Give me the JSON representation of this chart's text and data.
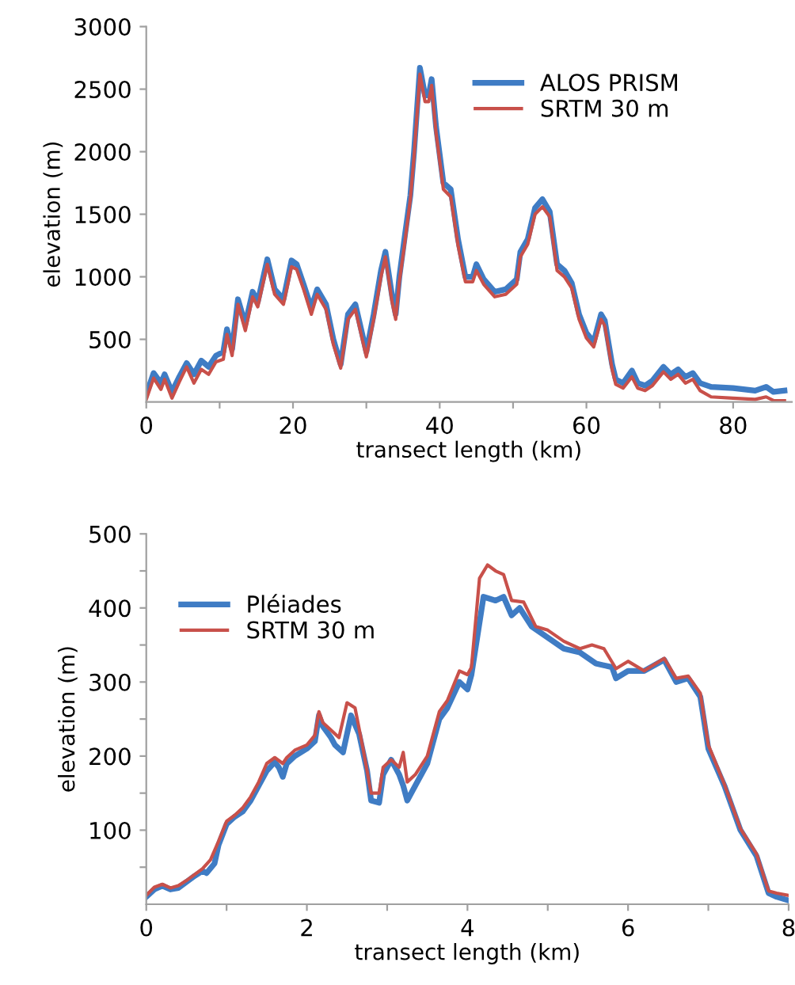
{
  "chart_data": [
    {
      "type": "line",
      "xlabel": "transect length (km)",
      "ylabel": "elevation (m)",
      "xlim": [
        0,
        88
      ],
      "ylim": [
        0,
        3000
      ],
      "xticks": [
        0,
        {
          "value": 10,
          "label": null
        },
        20,
        {
          "value": 30,
          "label": null
        },
        40,
        {
          "value": 50,
          "label": null
        },
        60,
        {
          "value": 70,
          "label": null
        },
        80
      ],
      "yticks": [
        500,
        1000,
        1500,
        2000,
        2500,
        3000
      ],
      "grid": false,
      "legend": "top right",
      "marker": "none",
      "line_style": "solid",
      "series": [
        {
          "name": "ALOS PRISM",
          "color": "#3f7cc4",
          "x": [
            0,
            1,
            2,
            2.5,
            3.5,
            4.5,
            5.5,
            6.5,
            7.5,
            8.5,
            9.5,
            10.5,
            11,
            11.7,
            12.5,
            13.5,
            14.5,
            15.2,
            16.5,
            17.5,
            18.7,
            19.8,
            20.5,
            21.5,
            22.5,
            23.3,
            24.5,
            25.5,
            26.5,
            27.5,
            28.5,
            30,
            31,
            32,
            32.6,
            33.5,
            34,
            34.5,
            35.3,
            36,
            36.5,
            37.3,
            38,
            38.5,
            38.9,
            39.5,
            40.5,
            41.5,
            42.5,
            43.5,
            44.5,
            45,
            46,
            47.5,
            49,
            50.5,
            51,
            52,
            53,
            54,
            55,
            56,
            57,
            58,
            59,
            60,
            61,
            62,
            62.5,
            63.5,
            64,
            65,
            66.2,
            67,
            68,
            69,
            70.5,
            71.5,
            72.5,
            73.5,
            74.5,
            75.5,
            77,
            80,
            83,
            84.5,
            85.5,
            87
          ],
          "values": [
            60,
            230,
            150,
            220,
            80,
            200,
            310,
            220,
            330,
            280,
            370,
            400,
            580,
            420,
            820,
            620,
            880,
            800,
            1140,
            900,
            820,
            1130,
            1100,
            930,
            750,
            900,
            780,
            500,
            300,
            700,
            780,
            400,
            700,
            1050,
            1200,
            850,
            700,
            1000,
            1350,
            1650,
            2000,
            2670,
            2450,
            2450,
            2580,
            2200,
            1750,
            1700,
            1300,
            1000,
            1000,
            1100,
            980,
            880,
            900,
            980,
            1200,
            1300,
            1550,
            1620,
            1520,
            1100,
            1050,
            950,
            700,
            550,
            480,
            700,
            650,
            300,
            180,
            150,
            250,
            150,
            130,
            170,
            280,
            220,
            260,
            200,
            230,
            150,
            120,
            110,
            90,
            120,
            80,
            90
          ]
        },
        {
          "name": "SRTM 30 m",
          "color": "#c8504a",
          "x": [
            0,
            1,
            2,
            2.5,
            3.5,
            4.5,
            5.5,
            6.5,
            7.5,
            8.5,
            9.5,
            10.5,
            11,
            11.7,
            12.5,
            13.5,
            14.5,
            15.2,
            16.5,
            17.5,
            18.7,
            19.8,
            20.5,
            21.5,
            22.5,
            23.3,
            24.5,
            25.5,
            26.5,
            27.5,
            28.5,
            30,
            31,
            32,
            32.6,
            33.5,
            34,
            34.5,
            35.3,
            36,
            36.5,
            37.3,
            38,
            38.5,
            38.9,
            39.5,
            40.5,
            41.5,
            42.5,
            43.5,
            44.5,
            45,
            46,
            47.5,
            49,
            50.5,
            51,
            52,
            53,
            54,
            55,
            56,
            57,
            58,
            59,
            60,
            61,
            62,
            62.5,
            63.5,
            64,
            65,
            66.2,
            67,
            68,
            69,
            70.5,
            71.5,
            72.5,
            73.5,
            74.5,
            75.5,
            77,
            80,
            83,
            84.5,
            85.5,
            87
          ],
          "values": [
            20,
            190,
            100,
            180,
            30,
            160,
            280,
            150,
            260,
            220,
            320,
            340,
            540,
            370,
            780,
            570,
            840,
            760,
            1100,
            860,
            780,
            1080,
            1060,
            890,
            700,
            860,
            740,
            460,
            270,
            660,
            740,
            360,
            660,
            1000,
            1160,
            800,
            660,
            960,
            1300,
            1620,
            1960,
            2620,
            2400,
            2400,
            2530,
            2150,
            1700,
            1640,
            1250,
            960,
            960,
            1050,
            940,
            840,
            860,
            940,
            1160,
            1260,
            1500,
            1560,
            1480,
            1050,
            1000,
            910,
            660,
            510,
            440,
            660,
            610,
            260,
            140,
            110,
            200,
            110,
            90,
            130,
            240,
            180,
            220,
            150,
            180,
            90,
            40,
            30,
            20,
            40,
            10,
            10
          ]
        }
      ]
    },
    {
      "type": "line",
      "xlabel": "transect length (km)",
      "ylabel": "elevation (m)",
      "xlim": [
        0,
        8
      ],
      "ylim": [
        0,
        500
      ],
      "xticks": [
        0,
        {
          "value": 1,
          "label": null
        },
        2,
        {
          "value": 3,
          "label": null
        },
        4,
        {
          "value": 5,
          "label": null
        },
        6,
        {
          "value": 7,
          "label": null
        },
        8
      ],
      "yticks": [
        {
          "value": 50,
          "label": null
        },
        100,
        {
          "value": 150,
          "label": null
        },
        200,
        {
          "value": 250,
          "label": null
        },
        300,
        {
          "value": 350,
          "label": null
        },
        400,
        {
          "value": 450,
          "label": null
        },
        500
      ],
      "grid": false,
      "legend": "top left",
      "marker": "none",
      "line_style": "solid",
      "series": [
        {
          "name": "Pléiades",
          "color": "#3f7cc4",
          "x": [
            0,
            0.1,
            0.2,
            0.3,
            0.4,
            0.5,
            0.6,
            0.7,
            0.75,
            0.85,
            0.9,
            1.0,
            1.1,
            1.2,
            1.3,
            1.4,
            1.5,
            1.6,
            1.65,
            1.7,
            1.75,
            1.85,
            2.0,
            2.1,
            2.15,
            2.2,
            2.3,
            2.35,
            2.45,
            2.55,
            2.65,
            2.75,
            2.8,
            2.9,
            2.95,
            3.05,
            3.15,
            3.2,
            3.25,
            3.35,
            3.5,
            3.65,
            3.75,
            3.9,
            4.0,
            4.05,
            4.2,
            4.35,
            4.45,
            4.55,
            4.65,
            4.8,
            5.0,
            5.2,
            5.4,
            5.6,
            5.8,
            5.85,
            6.0,
            6.2,
            6.45,
            6.6,
            6.75,
            6.9,
            7.0,
            7.2,
            7.4,
            7.6,
            7.75,
            7.85,
            8.0
          ],
          "values": [
            10,
            20,
            25,
            20,
            22,
            30,
            38,
            45,
            42,
            55,
            80,
            108,
            118,
            125,
            140,
            160,
            180,
            192,
            185,
            172,
            190,
            200,
            210,
            220,
            255,
            240,
            225,
            215,
            205,
            255,
            230,
            180,
            140,
            137,
            175,
            195,
            175,
            160,
            140,
            160,
            190,
            250,
            265,
            300,
            290,
            310,
            415,
            410,
            415,
            390,
            400,
            375,
            360,
            345,
            340,
            325,
            320,
            305,
            315,
            315,
            330,
            300,
            305,
            280,
            210,
            160,
            100,
            65,
            15,
            10,
            5
          ]
        },
        {
          "name": "SRTM 30 m",
          "color": "#c8504a",
          "x": [
            0,
            0.1,
            0.2,
            0.3,
            0.4,
            0.5,
            0.6,
            0.7,
            0.8,
            0.9,
            1.0,
            1.1,
            1.2,
            1.3,
            1.4,
            1.5,
            1.6,
            1.7,
            1.75,
            1.85,
            2.0,
            2.1,
            2.15,
            2.2,
            2.3,
            2.4,
            2.5,
            2.6,
            2.7,
            2.8,
            2.9,
            2.95,
            3.05,
            3.15,
            3.2,
            3.25,
            3.35,
            3.5,
            3.65,
            3.75,
            3.9,
            4.0,
            4.05,
            4.15,
            4.25,
            4.35,
            4.45,
            4.55,
            4.7,
            4.85,
            5.0,
            5.2,
            5.4,
            5.55,
            5.7,
            5.85,
            6.0,
            6.2,
            6.45,
            6.6,
            6.75,
            6.9,
            7.0,
            7.2,
            7.4,
            7.6,
            7.75,
            7.85,
            8.0
          ],
          "values": [
            12,
            23,
            27,
            22,
            25,
            32,
            40,
            48,
            60,
            85,
            112,
            120,
            130,
            145,
            165,
            190,
            198,
            190,
            198,
            208,
            215,
            228,
            260,
            245,
            235,
            225,
            272,
            265,
            210,
            150,
            150,
            185,
            195,
            185,
            205,
            165,
            175,
            200,
            260,
            275,
            315,
            310,
            320,
            440,
            458,
            450,
            445,
            410,
            408,
            375,
            370,
            355,
            345,
            350,
            345,
            318,
            328,
            315,
            332,
            305,
            308,
            285,
            215,
            162,
            102,
            68,
            18,
            15,
            12
          ]
        }
      ]
    }
  ]
}
